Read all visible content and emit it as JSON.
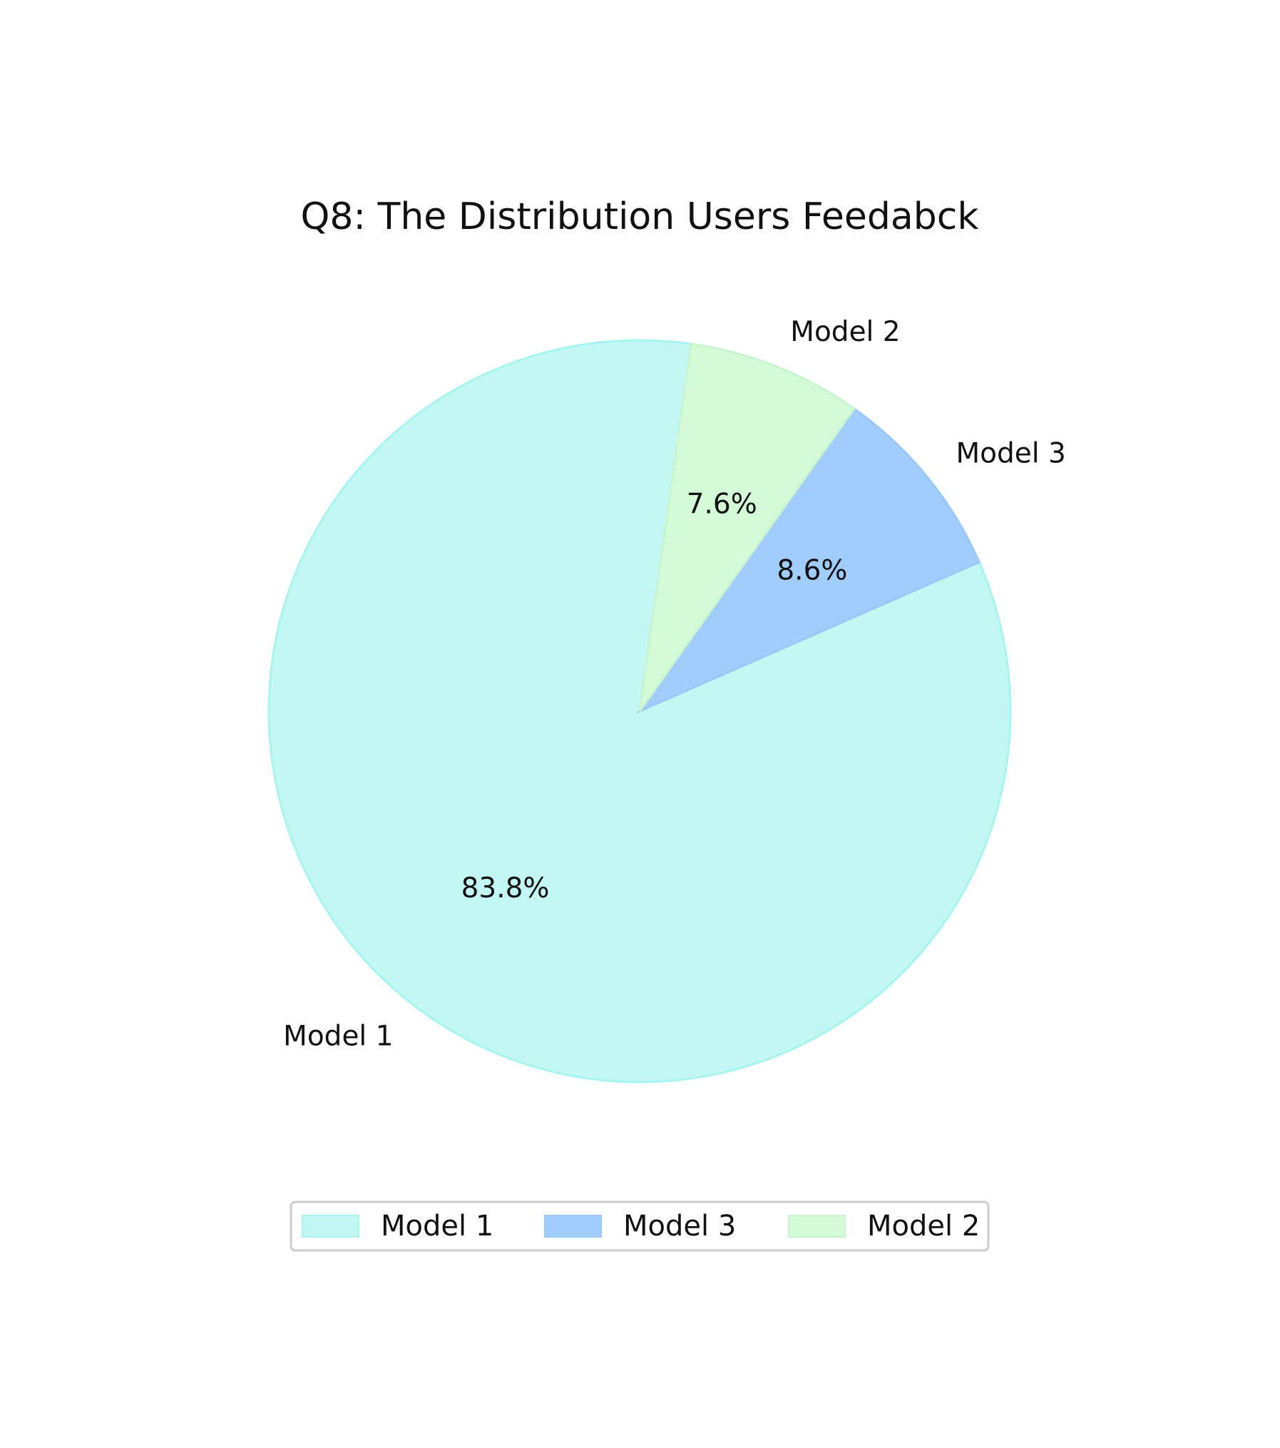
{
  "chart_data": {
    "type": "pie",
    "title": "Q8: The Distribution Users Feedabck",
    "categories": [
      "Model 1",
      "Model 3",
      "Model 2"
    ],
    "values": [
      83.8,
      8.6,
      7.6
    ],
    "value_labels": [
      "83.8%",
      "8.6%",
      "7.6%"
    ],
    "colors": [
      "#c2f7f3",
      "#a1cdfc",
      "#d4fbd8"
    ],
    "edge_colors": [
      "#a8f5ef",
      "#9cc8f8",
      "#c8f5cd"
    ],
    "start_angle_deg": 82,
    "direction": "counterclockwise",
    "legend": {
      "placement": "bottom-center",
      "columns": 3,
      "entries": [
        "Model 1",
        "Model 3",
        "Model 2"
      ]
    }
  }
}
